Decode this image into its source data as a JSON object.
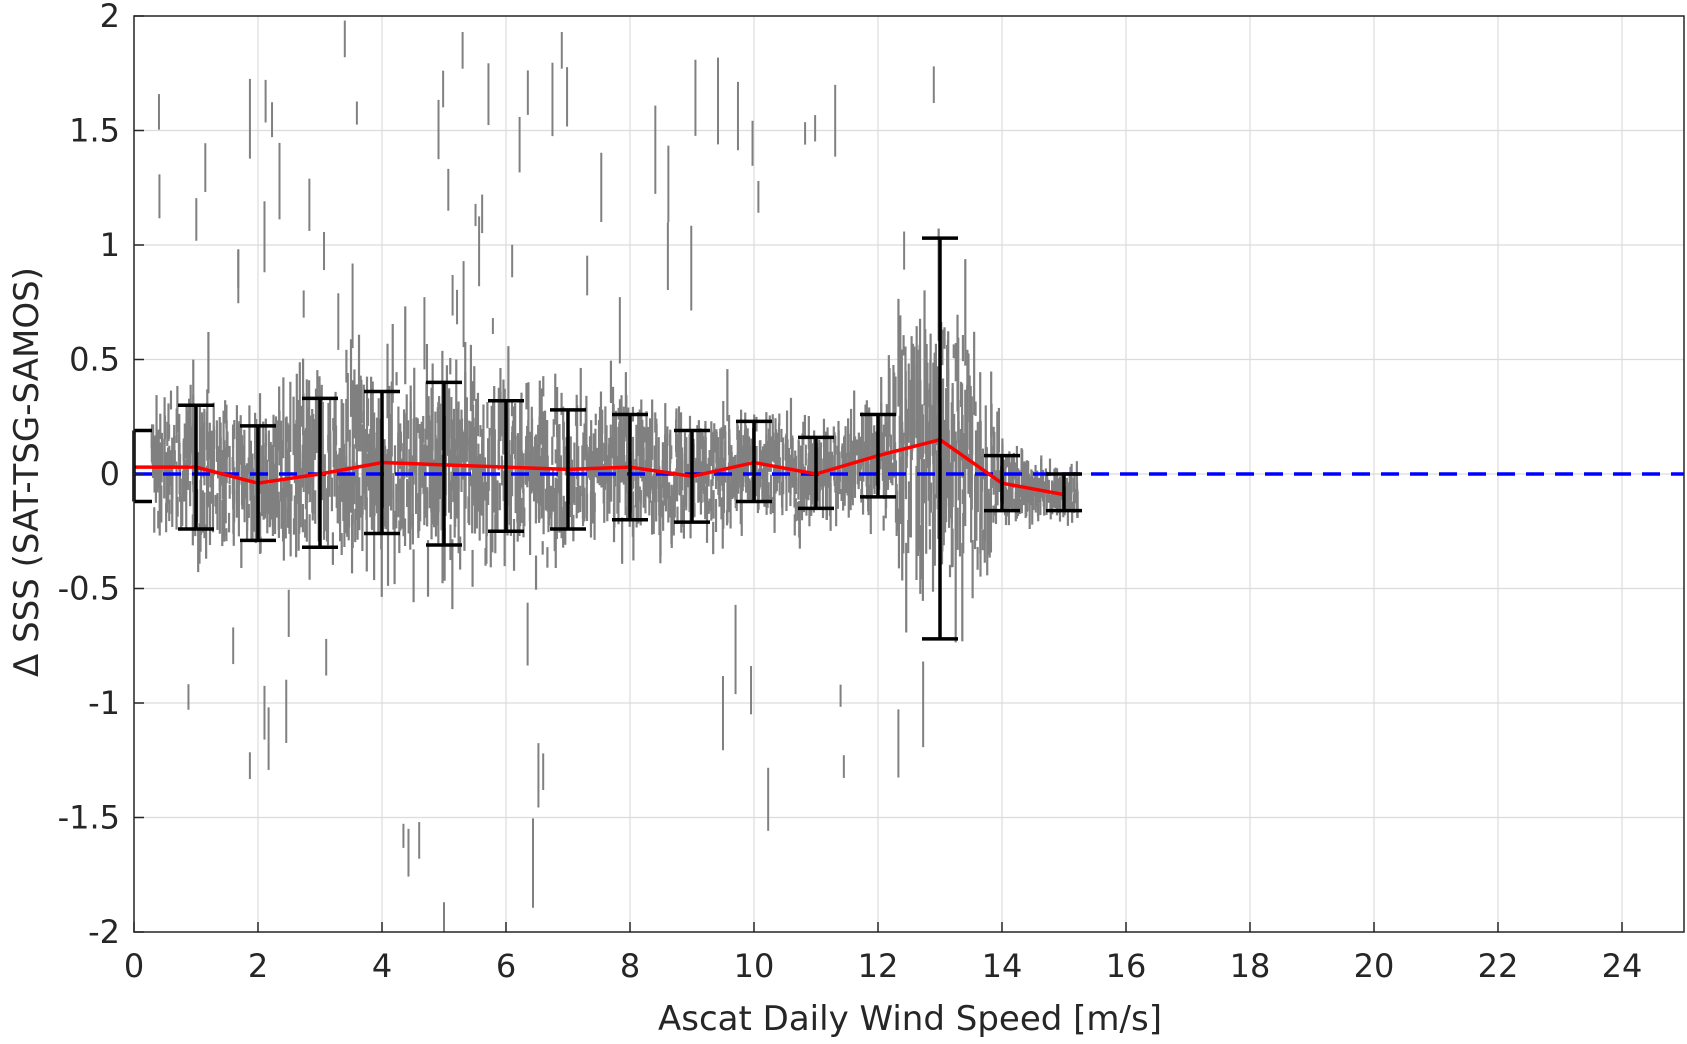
{
  "chart_data": {
    "type": "scatter",
    "title": "",
    "xlabel": "Ascat Daily Wind Speed [m/s]",
    "ylabel": "Δ SSS (SAT-TSG-SAMOS)",
    "xlim": [
      0,
      25
    ],
    "ylim": [
      -2,
      2
    ],
    "xticks": [
      "0",
      "2",
      "4",
      "6",
      "8",
      "10",
      "12",
      "14",
      "16",
      "18",
      "20",
      "22",
      "24"
    ],
    "yticks": [
      "-2",
      "-1.5",
      "-1",
      "-0.5",
      "0",
      "0.5",
      "1",
      "1.5",
      "2"
    ],
    "grid": true,
    "legend": "none",
    "colors": {
      "scatter": "#808080",
      "mean_line": "#ff0000",
      "zero_line": "#0000ff",
      "error_bars": "#000000",
      "grid": "#dcdcdc"
    },
    "series": [
      {
        "kind": "errorbar",
        "x": [
          0,
          1,
          2,
          3,
          4,
          5,
          6,
          7,
          8,
          9,
          10,
          11,
          12,
          13,
          14,
          15
        ],
        "mean": [
          0.03,
          0.03,
          -0.04,
          0.0,
          0.05,
          0.04,
          0.03,
          0.02,
          0.03,
          -0.01,
          0.05,
          0.0,
          0.08,
          0.15,
          -0.04,
          -0.09
        ],
        "lower": [
          -0.12,
          -0.24,
          -0.29,
          -0.32,
          -0.26,
          -0.31,
          -0.25,
          -0.24,
          -0.2,
          -0.21,
          -0.12,
          -0.15,
          -0.1,
          -0.72,
          -0.16,
          -0.16
        ],
        "upper": [
          0.19,
          0.3,
          0.21,
          0.33,
          0.36,
          0.4,
          0.32,
          0.28,
          0.26,
          0.19,
          0.23,
          0.16,
          0.26,
          1.03,
          0.08,
          0.0
        ]
      },
      {
        "kind": "reference",
        "y": 0
      },
      {
        "kind": "scatter",
        "x_range": [
          0.3,
          15.2
        ],
        "note_points": [
          {
            "x": 3.4,
            "y": 1.9
          },
          {
            "x": 5.3,
            "y": 1.85
          },
          {
            "x": 6.9,
            "y": 1.85
          },
          {
            "x": 12.9,
            "y": 1.7
          },
          {
            "x": 5.0,
            "y": -1.95
          },
          {
            "x": 6.6,
            "y": -1.3
          },
          {
            "x": 4.6,
            "y": -1.6
          },
          {
            "x": 3.1,
            "y": -0.8
          },
          {
            "x": 1.6,
            "y": -0.75
          }
        ]
      }
    ]
  }
}
